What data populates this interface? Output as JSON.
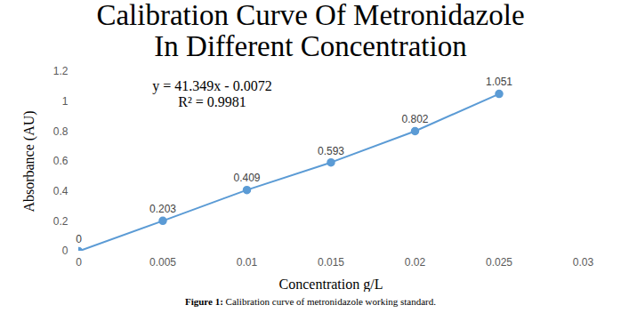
{
  "chart_data": {
    "type": "line",
    "title": "Calibration Curve Of Metronidazole\nIn Different Concentration",
    "x_label": "Concentration g/L",
    "y_label": "Absorbance (AU)",
    "annotations": [
      "y = 41.349x - 0.0072",
      "R² = 0.9981"
    ],
    "caption": "Figure 1: Calibration curve of metronidazole working standard.",
    "x": [
      0,
      0.005,
      0.01,
      0.015,
      0.02,
      0.025
    ],
    "values": [
      0,
      0.203,
      0.409,
      0.593,
      0.802,
      1.051
    ],
    "color": "#5b9bd5",
    "marker": "circle",
    "line_style": "solid",
    "data_labels": true,
    "grid": false,
    "xlim": [
      0,
      0.03
    ],
    "xticks": [
      0,
      0.005,
      0.01,
      0.015,
      0.02,
      0.025,
      0.03
    ],
    "ylim": [
      0,
      1.2
    ],
    "yticks": [
      0,
      0.2,
      0.4,
      0.6,
      0.8,
      1,
      1.2
    ]
  }
}
